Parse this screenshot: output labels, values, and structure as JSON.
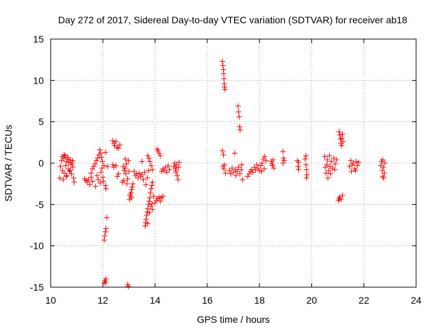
{
  "chart_data": {
    "type": "scatter",
    "title": "Day 272 of 2017, Sidereal Day-to-day VTEC variation (SDTVAR) for receiver ab18",
    "xlabel": "GPS time / hours",
    "ylabel": "SDTVAR / TECUs",
    "xlim": [
      10,
      24
    ],
    "ylim": [
      -15,
      15
    ],
    "xticks": [
      "10",
      "12",
      "14",
      "16",
      "18",
      "20",
      "22",
      "24"
    ],
    "yticks": [
      "-15",
      "-10",
      "-5",
      "0",
      "5",
      "10",
      "15"
    ],
    "grid": true,
    "marker": "+",
    "color": "#ff0000",
    "series": [
      {
        "name": "SDTVAR",
        "points": [
          [
            10.35,
            -1.8
          ],
          [
            10.38,
            -0.4
          ],
          [
            10.42,
            0.3
          ],
          [
            10.45,
            -0.9
          ],
          [
            10.48,
            -2.0
          ],
          [
            10.5,
            0.6
          ],
          [
            10.52,
            -1.2
          ],
          [
            10.55,
            0.9
          ],
          [
            10.58,
            -0.3
          ],
          [
            10.6,
            0.2
          ],
          [
            10.62,
            -1.5
          ],
          [
            10.65,
            0.5
          ],
          [
            10.68,
            -0.7
          ],
          [
            10.7,
            0.1
          ],
          [
            10.72,
            -1.0
          ],
          [
            10.75,
            0.4
          ],
          [
            10.78,
            -0.2
          ],
          [
            10.8,
            -1.3
          ],
          [
            10.82,
            0.0
          ],
          [
            10.85,
            -0.5
          ],
          [
            10.88,
            -1.8
          ],
          [
            10.9,
            -2.3
          ],
          [
            10.75,
            -0.9
          ],
          [
            10.6,
            -1.6
          ],
          [
            10.45,
            0.8
          ],
          [
            10.52,
            1.0
          ],
          [
            10.66,
            0.7
          ],
          [
            10.84,
            0.3
          ],
          [
            11.3,
            -1.9
          ],
          [
            11.35,
            -2.1
          ],
          [
            11.4,
            -2.3
          ],
          [
            11.45,
            -2.0
          ],
          [
            11.5,
            -2.6
          ],
          [
            11.55,
            -1.7
          ],
          [
            11.6,
            -2.2
          ],
          [
            11.55,
            -1.2
          ],
          [
            11.6,
            -0.7
          ],
          [
            11.65,
            -0.4
          ],
          [
            11.7,
            -0.1
          ],
          [
            11.75,
            0.3
          ],
          [
            11.8,
            0.6
          ],
          [
            11.82,
            -2.0
          ],
          [
            11.85,
            1.0
          ],
          [
            11.88,
            1.6
          ],
          [
            11.9,
            -2.4
          ],
          [
            11.92,
            1.2
          ],
          [
            11.95,
            0.7
          ],
          [
            11.98,
            0.2
          ],
          [
            12.0,
            -1.7
          ],
          [
            12.02,
            -2.2
          ],
          [
            11.72,
            -2.8
          ],
          [
            11.78,
            -1.5
          ],
          [
            11.93,
            -1.1
          ],
          [
            11.97,
            -0.6
          ],
          [
            12.04,
            -0.3
          ],
          [
            12.1,
            1.3
          ],
          [
            12.18,
            -0.4
          ],
          [
            12.05,
            -9.3
          ],
          [
            12.07,
            -8.8
          ],
          [
            12.1,
            -8.3
          ],
          [
            12.12,
            -7.9
          ],
          [
            12.15,
            -6.6
          ],
          [
            12.1,
            -2.7
          ],
          [
            12.12,
            -3.1
          ],
          [
            12.05,
            -14.4
          ],
          [
            12.08,
            -14.2
          ],
          [
            12.12,
            -14.0
          ],
          [
            12.1,
            -14.5
          ],
          [
            12.38,
            2.7
          ],
          [
            12.42,
            2.4
          ],
          [
            12.45,
            2.1
          ],
          [
            12.5,
            2.6
          ],
          [
            12.55,
            1.9
          ],
          [
            12.6,
            1.8
          ],
          [
            12.65,
            2.2
          ],
          [
            12.38,
            -0.2
          ],
          [
            12.42,
            -0.5
          ],
          [
            12.5,
            -0.3
          ],
          [
            12.55,
            -1.6
          ],
          [
            12.6,
            -1.3
          ],
          [
            12.75,
            -2.3
          ],
          [
            12.8,
            -2.1
          ],
          [
            12.82,
            -0.9
          ],
          [
            12.85,
            -0.6
          ],
          [
            12.88,
            -1.3
          ],
          [
            12.9,
            -0.1
          ],
          [
            12.92,
            -2.5
          ],
          [
            12.95,
            -1.9
          ],
          [
            12.98,
            0.3
          ],
          [
            13.0,
            -1.0
          ],
          [
            12.78,
            -0.4
          ],
          [
            12.86,
            0.5
          ],
          [
            13.02,
            -4.4
          ],
          [
            13.05,
            -4.0
          ],
          [
            13.08,
            -3.6
          ],
          [
            13.1,
            -3.2
          ],
          [
            13.12,
            -2.9
          ],
          [
            13.15,
            -2.5
          ],
          [
            13.1,
            -4.2
          ],
          [
            13.05,
            -3.8
          ],
          [
            12.95,
            -14.7
          ],
          [
            12.98,
            -14.9
          ],
          [
            13.2,
            -1.0
          ],
          [
            13.25,
            -1.5
          ],
          [
            13.3,
            -1.3
          ],
          [
            13.35,
            -1.8
          ],
          [
            13.4,
            -1.2
          ],
          [
            13.45,
            -1.6
          ],
          [
            13.5,
            -1.4
          ],
          [
            13.55,
            -2.0
          ],
          [
            13.6,
            -1.1
          ],
          [
            13.5,
            0.2
          ],
          [
            13.62,
            -7.6
          ],
          [
            13.64,
            -7.2
          ],
          [
            13.66,
            -6.8
          ],
          [
            13.68,
            -6.3
          ],
          [
            13.7,
            -5.9
          ],
          [
            13.72,
            -5.5
          ],
          [
            13.75,
            -5.0
          ],
          [
            13.78,
            -4.6
          ],
          [
            13.8,
            -4.2
          ],
          [
            13.82,
            -3.6
          ],
          [
            13.85,
            -3.1
          ],
          [
            13.88,
            -2.7
          ],
          [
            13.9,
            -2.3
          ],
          [
            13.65,
            -2.6
          ],
          [
            13.7,
            -1.8
          ],
          [
            13.75,
            -0.9
          ],
          [
            13.72,
            0.9
          ],
          [
            13.76,
            0.6
          ],
          [
            13.8,
            0.2
          ],
          [
            13.85,
            -0.3
          ],
          [
            13.9,
            -0.8
          ],
          [
            13.72,
            -7.3
          ],
          [
            13.78,
            -6.0
          ],
          [
            13.84,
            -5.2
          ],
          [
            13.88,
            -4.9
          ],
          [
            13.9,
            -5.6
          ],
          [
            13.95,
            -4.0
          ],
          [
            14.0,
            -4.8
          ],
          [
            14.05,
            -4.5
          ],
          [
            14.1,
            -4.3
          ],
          [
            14.15,
            -4.1
          ],
          [
            14.2,
            -4.6
          ],
          [
            14.25,
            -4.2
          ],
          [
            14.3,
            -4.0
          ],
          [
            14.08,
            1.7
          ],
          [
            14.12,
            1.5
          ],
          [
            14.15,
            1.2
          ],
          [
            14.2,
            0.9
          ],
          [
            14.25,
            -1.0
          ],
          [
            14.3,
            -0.7
          ],
          [
            14.35,
            -0.9
          ],
          [
            14.4,
            -0.5
          ],
          [
            14.45,
            -1.1
          ],
          [
            14.5,
            -0.3
          ],
          [
            14.55,
            -0.8
          ],
          [
            14.72,
            -0.4
          ],
          [
            14.75,
            0.0
          ],
          [
            14.78,
            -0.6
          ],
          [
            14.8,
            -1.1
          ],
          [
            14.82,
            -0.2
          ],
          [
            14.85,
            -1.5
          ],
          [
            14.88,
            -2.0
          ],
          [
            14.9,
            -0.5
          ],
          [
            14.92,
            0.1
          ],
          [
            14.8,
            -0.9
          ],
          [
            16.58,
            12.3
          ],
          [
            16.6,
            11.8
          ],
          [
            16.62,
            11.3
          ],
          [
            16.63,
            10.8
          ],
          [
            16.64,
            10.2
          ],
          [
            16.65,
            9.6
          ],
          [
            16.66,
            9.2
          ],
          [
            16.68,
            8.9
          ],
          [
            16.58,
            1.5
          ],
          [
            16.62,
            1.0
          ],
          [
            16.6,
            -0.4
          ],
          [
            16.64,
            -0.7
          ],
          [
            16.7,
            -1.2
          ],
          [
            16.66,
            -0.2
          ],
          [
            16.85,
            -0.9
          ],
          [
            16.9,
            -1.3
          ],
          [
            16.95,
            -0.6
          ],
          [
            17.0,
            -1.1
          ],
          [
            17.05,
            1.2
          ],
          [
            17.08,
            -0.8
          ],
          [
            17.1,
            -1.5
          ],
          [
            17.15,
            -1.0
          ],
          [
            17.18,
            6.9
          ],
          [
            17.2,
            6.2
          ],
          [
            17.22,
            5.6
          ],
          [
            17.24,
            4.4
          ],
          [
            17.26,
            4.0
          ],
          [
            17.2,
            -0.5
          ],
          [
            17.25,
            -1.3
          ],
          [
            17.3,
            -0.8
          ],
          [
            17.35,
            -2.0
          ],
          [
            17.32,
            -0.2
          ],
          [
            17.55,
            -1.6
          ],
          [
            17.6,
            -1.3
          ],
          [
            17.65,
            -1.0
          ],
          [
            17.7,
            -0.8
          ],
          [
            17.75,
            -1.1
          ],
          [
            17.8,
            -0.5
          ],
          [
            17.85,
            -0.8
          ],
          [
            17.9,
            -0.2
          ],
          [
            17.95,
            -0.6
          ],
          [
            18.0,
            -0.9
          ],
          [
            18.05,
            -0.3
          ],
          [
            18.1,
            0.0
          ],
          [
            18.15,
            0.5
          ],
          [
            18.2,
            0.8
          ],
          [
            18.25,
            0.3
          ],
          [
            18.08,
            -1.0
          ],
          [
            18.18,
            -0.7
          ],
          [
            18.45,
            0.2
          ],
          [
            18.5,
            -0.3
          ],
          [
            18.52,
            0.4
          ],
          [
            18.55,
            -0.6
          ],
          [
            18.48,
            -0.1
          ],
          [
            18.9,
            1.4
          ],
          [
            18.92,
            0.6
          ],
          [
            18.95,
            0.3
          ],
          [
            18.9,
            0.0
          ],
          [
            19.45,
            0.3
          ],
          [
            19.48,
            -0.4
          ],
          [
            19.5,
            -0.8
          ],
          [
            19.5,
            0.1
          ],
          [
            19.75,
            0.5
          ],
          [
            19.78,
            -0.2
          ],
          [
            19.8,
            -0.8
          ],
          [
            19.82,
            -1.4
          ],
          [
            19.78,
            0.9
          ],
          [
            19.8,
            -1.8
          ],
          [
            20.5,
            0.8
          ],
          [
            20.52,
            -0.5
          ],
          [
            20.55,
            -1.2
          ],
          [
            20.58,
            -0.2
          ],
          [
            20.6,
            0.4
          ],
          [
            20.65,
            -0.9
          ],
          [
            20.7,
            -0.4
          ],
          [
            20.75,
            0.2
          ],
          [
            20.8,
            -0.6
          ],
          [
            20.85,
            0.6
          ],
          [
            20.9,
            -0.1
          ],
          [
            20.95,
            0.4
          ],
          [
            20.62,
            -1.8
          ],
          [
            20.72,
            -1.3
          ],
          [
            20.88,
            -0.8
          ],
          [
            20.68,
            0.9
          ],
          [
            21.05,
            3.8
          ],
          [
            21.08,
            3.4
          ],
          [
            21.1,
            2.9
          ],
          [
            21.12,
            2.4
          ],
          [
            21.15,
            2.1
          ],
          [
            21.18,
            3.5
          ],
          [
            21.2,
            2.6
          ],
          [
            21.15,
            3.0
          ],
          [
            21.02,
            -4.5
          ],
          [
            21.05,
            -4.3
          ],
          [
            21.08,
            -4.1
          ],
          [
            21.12,
            -4.4
          ],
          [
            21.18,
            -3.9
          ],
          [
            21.45,
            -0.4
          ],
          [
            21.5,
            0.3
          ],
          [
            21.55,
            -0.2
          ],
          [
            21.6,
            0.0
          ],
          [
            21.65,
            -0.7
          ],
          [
            21.7,
            0.2
          ],
          [
            21.75,
            -0.3
          ],
          [
            21.8,
            0.1
          ],
          [
            21.52,
            -1.0
          ],
          [
            21.68,
            -0.9
          ],
          [
            22.65,
            -0.3
          ],
          [
            22.68,
            0.2
          ],
          [
            22.7,
            -0.9
          ],
          [
            22.72,
            -1.6
          ],
          [
            22.75,
            -0.5
          ],
          [
            22.78,
            -1.2
          ],
          [
            22.8,
            0.0
          ],
          [
            22.72,
            0.4
          ],
          [
            22.76,
            -1.8
          ]
        ]
      }
    ]
  }
}
